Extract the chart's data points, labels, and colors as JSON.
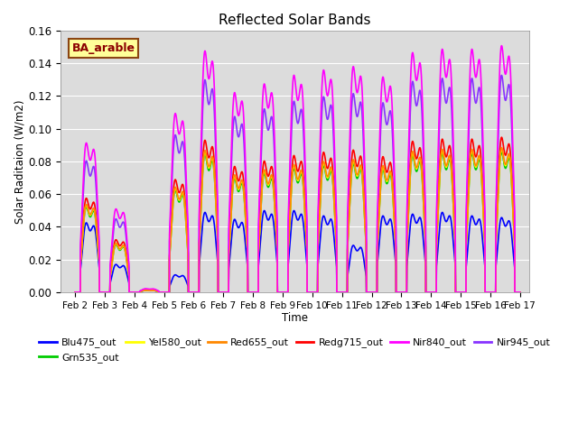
{
  "title": "Reflected Solar Bands",
  "xlabel": "Time",
  "ylabel": "Solar Raditaion (W/m2)",
  "ylim": [
    0,
    0.16
  ],
  "xlim_start": 1.5,
  "xlim_end": 17.3,
  "annotation_text": "BA_arable",
  "annotation_color": "#8B0000",
  "annotation_bg": "#FFFF99",
  "annotation_border": "#8B4513",
  "plot_bg": "#DCDCDC",
  "fig_bg": "#FFFFFF",
  "series_order": [
    "Blu475_out",
    "Grn535_out",
    "Yel580_out",
    "Red655_out",
    "Redg715_out",
    "Nir840_out",
    "Nir945_out"
  ],
  "series": {
    "Blu475_out": {
      "color": "#0000FF",
      "lw": 1.2,
      "zorder": 4
    },
    "Grn535_out": {
      "color": "#00CC00",
      "lw": 1.2,
      "zorder": 5
    },
    "Yel580_out": {
      "color": "#FFFF00",
      "lw": 1.2,
      "zorder": 6
    },
    "Red655_out": {
      "color": "#FF8800",
      "lw": 1.2,
      "zorder": 6
    },
    "Redg715_out": {
      "color": "#FF0000",
      "lw": 1.2,
      "zorder": 5
    },
    "Nir840_out": {
      "color": "#FF00FF",
      "lw": 1.2,
      "zorder": 7
    },
    "Nir945_out": {
      "color": "#8833FF",
      "lw": 1.2,
      "zorder": 3
    }
  },
  "xtick_labels": [
    "Feb 2",
    "Feb 3",
    "Feb 4",
    "Feb 5",
    "Feb 6",
    "Feb 7",
    "Feb 8",
    "Feb 9",
    "Feb 10",
    "Feb 11",
    "Feb 12",
    "Feb 13",
    "Feb 14",
    "Feb 15",
    "Feb 16",
    "Feb 17"
  ],
  "xtick_positions": [
    2,
    3,
    4,
    5,
    6,
    7,
    8,
    9,
    10,
    11,
    12,
    13,
    14,
    15,
    16,
    17
  ],
  "ytick_labels": [
    "0.00",
    "0.02",
    "0.04",
    "0.06",
    "0.08",
    "0.10",
    "0.12",
    "0.14",
    "0.16"
  ],
  "ytick_positions": [
    0.0,
    0.02,
    0.04,
    0.06,
    0.08,
    0.1,
    0.12,
    0.14,
    0.16
  ],
  "day_peaks": {
    "nir840": [
      0.086,
      0.048,
      0.002,
      0.103,
      0.139,
      0.115,
      0.12,
      0.125,
      0.128,
      0.13,
      0.124,
      0.138,
      0.14,
      0.14,
      0.142
    ],
    "blue": [
      0.04,
      0.016,
      0.001,
      0.01,
      0.046,
      0.042,
      0.047,
      0.047,
      0.044,
      0.027,
      0.044,
      0.045,
      0.046,
      0.044,
      0.043
    ],
    "grn_ratio": 0.95,
    "yel_ratio": 0.97,
    "red_ratio": 0.98,
    "redg_ratio": 1.05,
    "nir945_ratio": 0.88
  }
}
